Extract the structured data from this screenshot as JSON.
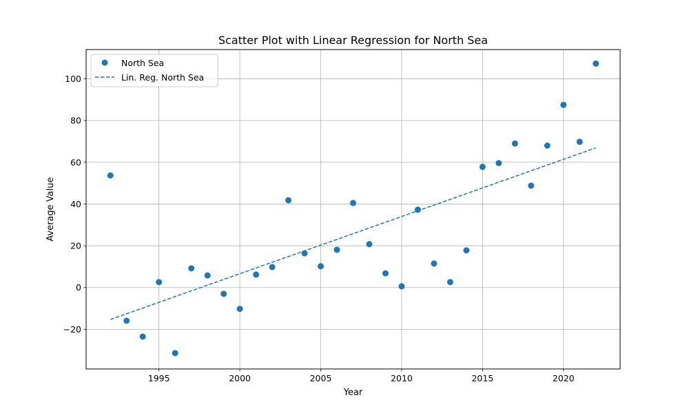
{
  "chart_data": {
    "type": "scatter",
    "title": "Scatter Plot with Linear Regression for North Sea",
    "xlabel": "Year",
    "ylabel": "Average Value",
    "xlim": [
      1990.5,
      2023.5
    ],
    "ylim": [
      -39,
      114
    ],
    "xticks": [
      1995,
      2000,
      2005,
      2010,
      2015,
      2020
    ],
    "yticks": [
      -20,
      0,
      20,
      40,
      60,
      80,
      100
    ],
    "grid": true,
    "legend_position": "top-left",
    "series": [
      {
        "name": "North Sea",
        "kind": "scatter",
        "color": "#1f77b4",
        "x": [
          1992,
          1993,
          1994,
          1995,
          1996,
          1997,
          1998,
          1999,
          2000,
          2001,
          2002,
          2003,
          2004,
          2005,
          2006,
          2007,
          2008,
          2009,
          2010,
          2011,
          2012,
          2013,
          2014,
          2015,
          2016,
          2017,
          2018,
          2019,
          2020,
          2021,
          2022
        ],
        "y": [
          53.7,
          -15.9,
          -23.5,
          2.6,
          -31.4,
          9.2,
          5.8,
          -3.0,
          -10.2,
          6.2,
          9.8,
          41.8,
          16.4,
          10.2,
          18.1,
          40.5,
          20.8,
          6.8,
          0.6,
          37.3,
          11.5,
          2.6,
          17.8,
          57.8,
          59.6,
          69.0,
          48.8,
          68.0,
          87.5,
          69.8,
          107.3
        ]
      },
      {
        "name": "Lin. Reg. North Sea",
        "kind": "line",
        "style": "dashed",
        "color": "#1f77b4",
        "x": [
          1992,
          2022
        ],
        "y": [
          -15.3,
          66.9
        ]
      }
    ]
  }
}
